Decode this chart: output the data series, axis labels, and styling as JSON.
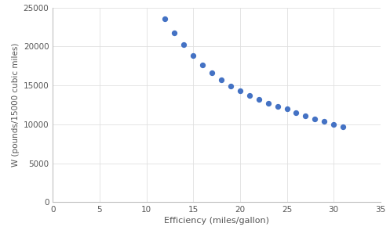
{
  "x": [
    12,
    13,
    14,
    15,
    16,
    17,
    18,
    19,
    20,
    21,
    22,
    23,
    24,
    25,
    26,
    27,
    28,
    29,
    30,
    31
  ],
  "y": [
    23529,
    21739,
    20202,
    18868,
    17647,
    16667,
    15686,
    14925,
    14286,
    13699,
    13158,
    12739,
    12346,
    12000,
    11538,
    11111,
    10714,
    10345,
    10000,
    9677
  ],
  "xlabel": "Efficiency (miles/gallon)",
  "ylabel": "W (pounds/15000 cubic miles)",
  "xlim": [
    0,
    35
  ],
  "ylim": [
    0,
    25000
  ],
  "xticks": [
    0,
    5,
    10,
    15,
    20,
    25,
    30,
    35
  ],
  "yticks": [
    0,
    5000,
    10000,
    15000,
    20000,
    25000
  ],
  "dot_color": "#4472C4",
  "dot_size": 18,
  "background_color": "#ffffff",
  "grid_color": "#e0e0e0",
  "xlabel_fontsize": 8,
  "ylabel_fontsize": 7.5,
  "tick_fontsize": 7.5
}
